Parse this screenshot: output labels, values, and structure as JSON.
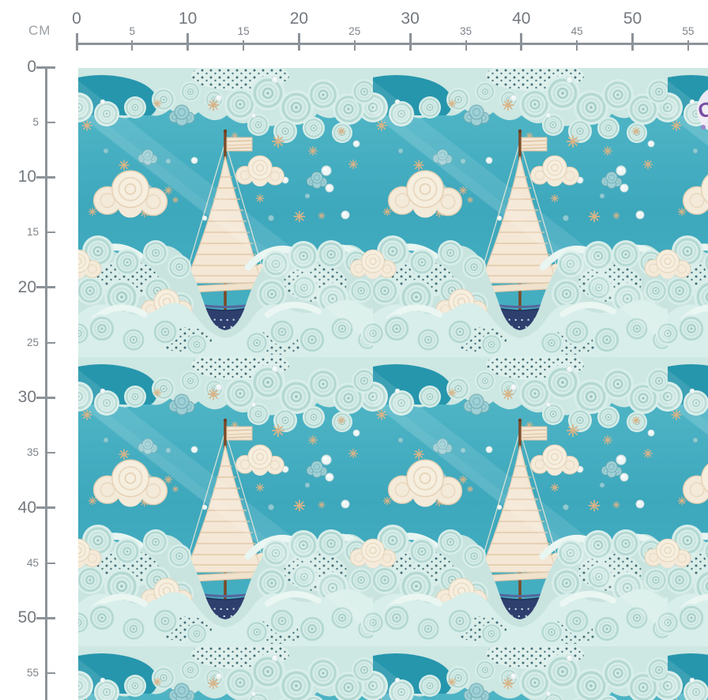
{
  "unit": {
    "label": "CM"
  },
  "ruler": {
    "horizontal_ticks": [
      0,
      5,
      10,
      15,
      20,
      25,
      30,
      35,
      40,
      45,
      50,
      55
    ],
    "vertical_ticks": [
      0,
      5,
      10,
      15,
      20,
      25,
      30,
      35,
      40,
      45,
      50,
      55
    ],
    "line_color": "#8d9399",
    "major_label_color": "#73797f",
    "minor_label_color": "#7d8389"
  },
  "fabric": {
    "pattern_name": "knitted-nautical-sailboat-clouds",
    "colors": {
      "sky_teal": "#3fa9be",
      "water_teal": "#2696ad",
      "wave_mint": "#c9e4df",
      "wave_mint_light": "#d8eeea",
      "mesh_hole_dark": "#0e4453",
      "cloud_cream": "#f4ead9",
      "sail_cream": "#f4e7d5",
      "hull_navy": "#2e3f6e",
      "mast_brown": "#7b4a28",
      "star_tan": "#d8b488",
      "crochet_teal": "#9ed0d6"
    }
  },
  "badge": {
    "letter": "C",
    "color": "#7a4fa3",
    "bg": "#f2edf7"
  }
}
